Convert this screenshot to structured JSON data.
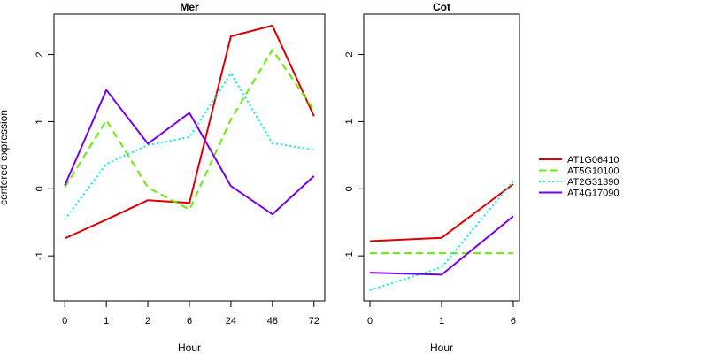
{
  "chart_data": {
    "type": "line",
    "ylabel": "centered expression",
    "ylim": [
      -1.67,
      2.6
    ],
    "yticks": [
      -1,
      0,
      1,
      2
    ],
    "yticklabels": [
      "-1",
      "0",
      "1",
      "2"
    ],
    "panels": [
      {
        "title": "Mer",
        "xlabel": "Hour",
        "categories": [
          "0",
          "1",
          "2",
          "6",
          "24",
          "48",
          "72"
        ],
        "series": [
          {
            "name": "AT1G06410",
            "values": [
              -0.74,
              -0.46,
              -0.17,
              -0.21,
              2.27,
              2.43,
              1.08
            ]
          },
          {
            "name": "AT5G10100",
            "values": [
              0.02,
              1.02,
              0.02,
              -0.31,
              1.03,
              2.07,
              1.17
            ]
          },
          {
            "name": "AT2G31390",
            "values": [
              -0.46,
              0.37,
              0.65,
              0.77,
              1.72,
              0.68,
              0.58
            ]
          },
          {
            "name": "AT4G17090",
            "values": [
              0.05,
              1.47,
              0.67,
              1.13,
              0.04,
              -0.38,
              0.19
            ]
          }
        ]
      },
      {
        "title": "Cot",
        "xlabel": "Hour",
        "categories": [
          "0",
          "1",
          "6"
        ],
        "series": [
          {
            "name": "AT1G06410",
            "values": [
              -0.78,
              -0.73,
              0.07
            ]
          },
          {
            "name": "AT5G10100",
            "values": [
              -0.96,
              -0.96,
              -0.96
            ]
          },
          {
            "name": "AT2G31390",
            "values": [
              -1.51,
              -1.17,
              0.12
            ]
          },
          {
            "name": "AT4G17090",
            "values": [
              -1.25,
              -1.28,
              -0.41
            ]
          }
        ]
      }
    ],
    "legend": {
      "placement": "right",
      "entries": [
        {
          "name": "AT1G06410",
          "color": "#dd0000",
          "dash": "solid"
        },
        {
          "name": "AT5G10100",
          "color": "#66ee00",
          "dash": "dashed"
        },
        {
          "name": "AT2G31390",
          "color": "#00eeee",
          "dash": "dotted"
        },
        {
          "name": "AT4G17090",
          "color": "#7700ee",
          "dash": "solid"
        }
      ]
    }
  }
}
